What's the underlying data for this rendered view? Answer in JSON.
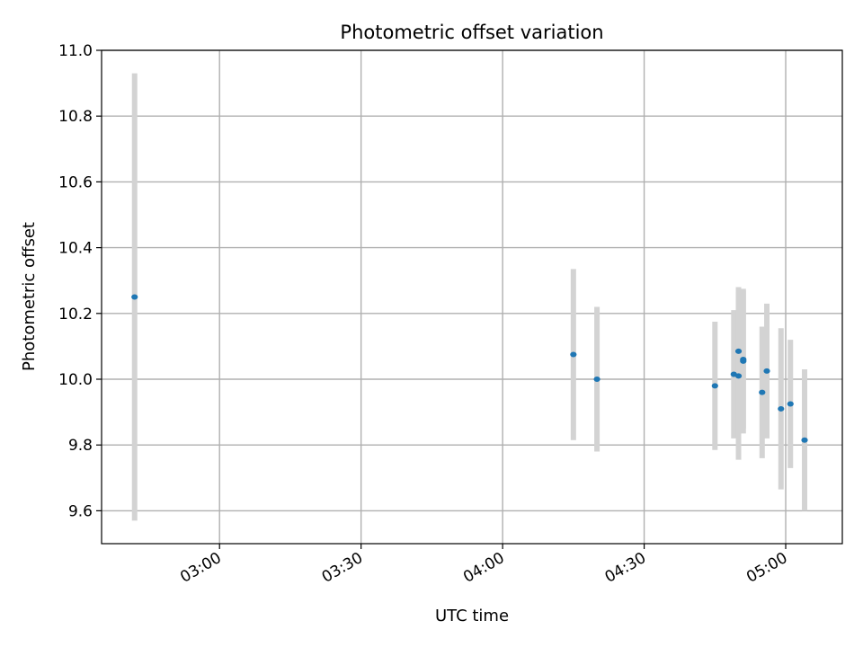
{
  "chart_data": {
    "type": "scatter",
    "title": "Photometric offset variation",
    "xlabel": "UTC time",
    "ylabel": "Photometric offset",
    "x_ticks": [
      "03:00",
      "03:30",
      "04:00",
      "04:30",
      "05:00"
    ],
    "y_ticks": [
      "9.6",
      "9.8",
      "10.0",
      "10.2",
      "10.4",
      "10.6",
      "10.8",
      "11.0"
    ],
    "xlim": [
      "02:35",
      "05:12"
    ],
    "ylim": [
      9.5,
      11.0
    ],
    "grid": true,
    "colors": {
      "point": "#1f77b4",
      "errorbar": "#d3d3d3",
      "grid": "#b0b0b0"
    },
    "points": [
      {
        "x": "02:42",
        "y": 10.25,
        "err": 0.68
      },
      {
        "x": "04:15",
        "y": 10.075,
        "err": 0.26
      },
      {
        "x": "04:20",
        "y": 10.0,
        "err": 0.22
      },
      {
        "x": "04:45",
        "y": 9.98,
        "err": 0.195
      },
      {
        "x": "04:49",
        "y": 10.015,
        "err": 0.195
      },
      {
        "x": "04:50",
        "y": 10.01,
        "err": 0.255
      },
      {
        "x": "04:50",
        "y": 10.085,
        "err": 0.195
      },
      {
        "x": "04:51",
        "y": 10.055,
        "err": 0.22
      },
      {
        "x": "04:51",
        "y": 10.06,
        "err": 0.21
      },
      {
        "x": "04:55",
        "y": 9.96,
        "err": 0.2
      },
      {
        "x": "04:56",
        "y": 10.025,
        "err": 0.205
      },
      {
        "x": "04:59",
        "y": 9.91,
        "err": 0.245
      },
      {
        "x": "05:01",
        "y": 9.925,
        "err": 0.195
      },
      {
        "x": "05:04",
        "y": 9.815,
        "err": 0.215
      }
    ]
  }
}
